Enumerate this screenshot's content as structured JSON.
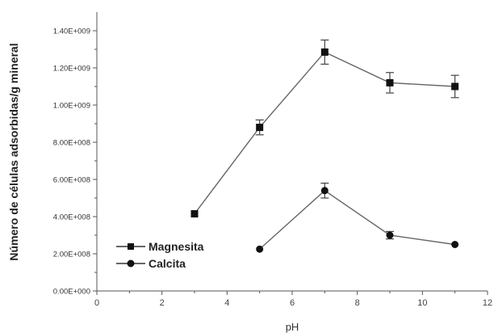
{
  "chart_data": {
    "type": "line",
    "xlabel": "pH",
    "ylabel": "Número de células adsorbidas/g mineral",
    "xlim": [
      0,
      12
    ],
    "ylim": [
      0,
      1500000000
    ],
    "x_ticks": [
      "0",
      "2",
      "4",
      "6",
      "8",
      "10",
      "12"
    ],
    "y_ticks": [
      "0.00E+000",
      "2.00E+008",
      "4.00E+008",
      "6.00E+008",
      "8.00E+008",
      "1.00E+009",
      "1.20E+009",
      "1.40E+009"
    ],
    "y_tick_values": [
      0,
      200000000,
      400000000,
      600000000,
      800000000,
      1000000000,
      1200000000,
      1400000000
    ],
    "x_tick_values": [
      0,
      2,
      4,
      6,
      8,
      10,
      12
    ],
    "legend_position": "bottom-left",
    "grid": false,
    "series": [
      {
        "name": "Magnesita",
        "marker": "square",
        "x": [
          3,
          5,
          7,
          9,
          11
        ],
        "y": [
          415000000,
          880000000,
          1285000000,
          1120000000,
          1100000000
        ],
        "error": [
          0,
          40000000,
          65000000,
          55000000,
          60000000
        ]
      },
      {
        "name": "Calcita",
        "marker": "circle",
        "x": [
          5,
          7,
          9,
          11
        ],
        "y": [
          225000000,
          540000000,
          300000000,
          250000000
        ],
        "error": [
          0,
          40000000,
          20000000,
          0
        ]
      }
    ]
  }
}
